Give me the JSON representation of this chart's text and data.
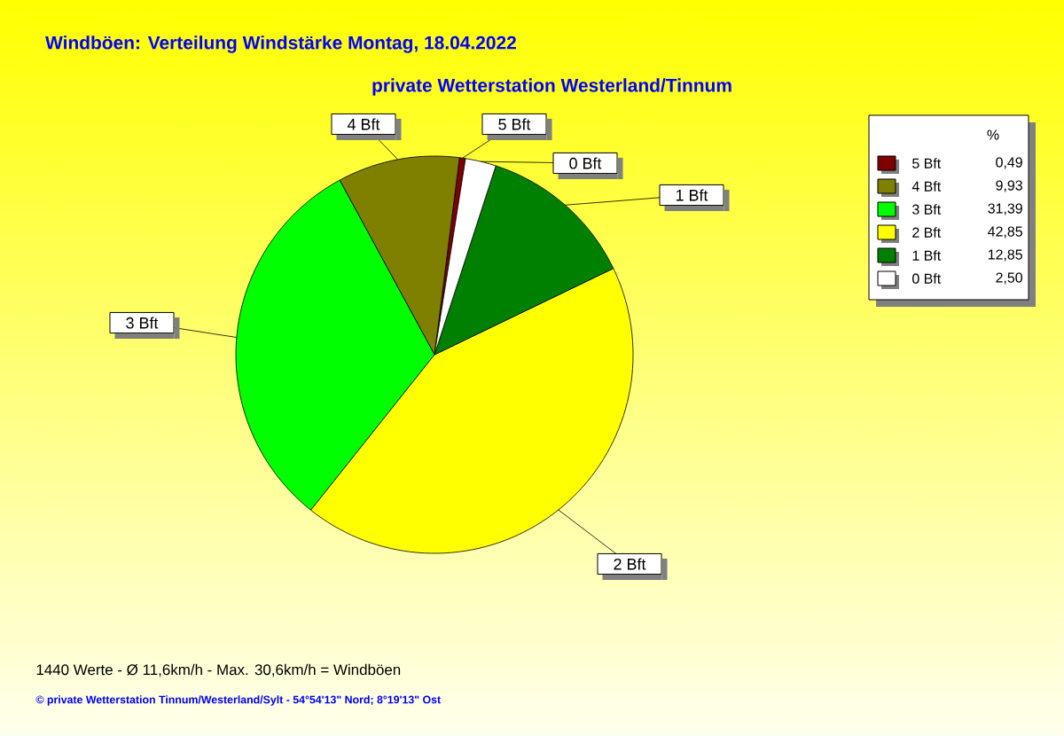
{
  "chart_data": {
    "type": "pie",
    "title": "Windböen: Verteilung Windstärke  Montag, 18.04.2022",
    "subtitle": "private Wetterstation Westerland/Tinnum",
    "categories": [
      "5 Bft",
      "4 Bft",
      "3 Bft",
      "2 Bft",
      "1 Bft",
      "0 Bft"
    ],
    "values": [
      0.49,
      9.93,
      31.39,
      42.85,
      12.85,
      2.5
    ],
    "value_labels": [
      "0,49",
      "9,93",
      "31,39",
      "42,85",
      "12,85",
      "2,50"
    ],
    "colors": [
      "#800000",
      "#808000",
      "#00ff00",
      "#ffff00",
      "#008000",
      "#ffffff"
    ],
    "legend": "top right",
    "legend_title": "%",
    "annotations": [
      "1440 Werte   -   Ø 11,6km/h  -  Max. 30,6km/h = Windböen",
      "© private Wetterstation Tinnum/Westerland/Sylt   -   54°54'13\" Nord; 8°19'13\" Ost"
    ]
  }
}
